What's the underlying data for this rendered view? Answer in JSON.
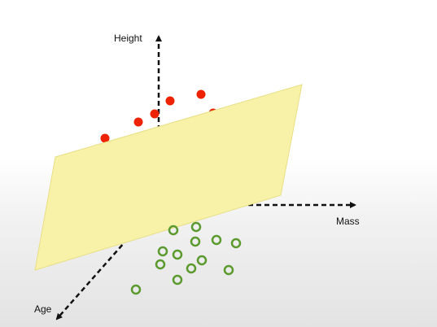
{
  "diagram": {
    "axes": {
      "height_label": "Height",
      "mass_label": "Mass",
      "age_label": "Age"
    },
    "colors": {
      "plane_fill": "#f7f2a8",
      "plane_stroke": "#e8df86",
      "class_a": "#ee2200",
      "class_b": "#5b9a2e",
      "axis": "#111111"
    },
    "class_a_point_count": 15,
    "class_b_point_count": 13
  }
}
